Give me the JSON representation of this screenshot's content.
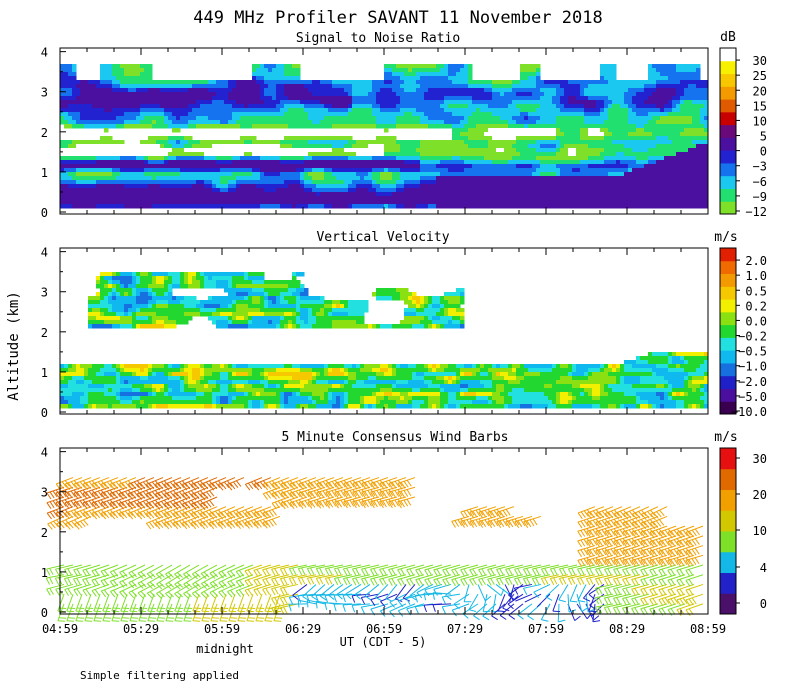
{
  "figure": {
    "title": "449 MHz Profiler SAVANT 11 November 2018",
    "ylabel": "Altitude (km)",
    "xlabel": "UT  (CDT - 5)",
    "midnight_label": "midnight",
    "footer_note": "Simple filtering applied"
  },
  "colors": {
    "snr": [
      "#7fe02a",
      "#22e070",
      "#1ac8f0",
      "#1673f0",
      "#2222d0",
      "#4b10a0",
      "#6a0a7a",
      "#c80000",
      "#e05a00",
      "#f29a00",
      "#f7c800",
      "#f7f000",
      "#ffffff"
    ],
    "vv": [
      "#3a0050",
      "#4b0fa0",
      "#2020c8",
      "#1770e0",
      "#10b8f0",
      "#22e0e0",
      "#22d830",
      "#8ae010",
      "#f2f000",
      "#f5c800",
      "#f29a00",
      "#ef6a00",
      "#e02000"
    ],
    "wind": [
      "#4a106a",
      "#2222c8",
      "#14b8e6",
      "#7fe02a",
      "#d2c800",
      "#f2a000",
      "#e06a00",
      "#e61010"
    ]
  },
  "chart_data": [
    {
      "type": "heatmap",
      "title": "Signal to Noise Ratio",
      "units": "dB",
      "x_ticks": [
        "04:59",
        "05:29",
        "05:59",
        "06:29",
        "06:59",
        "07:29",
        "07:59",
        "08:29",
        "08:59"
      ],
      "y_ticks": [
        "0",
        "1",
        "2",
        "3",
        "4"
      ],
      "ylim": [
        0,
        4
      ],
      "xlim": [
        "04:59",
        "08:59"
      ],
      "colorbar_labels": [
        "30",
        "25",
        "20",
        "15",
        "10",
        "5",
        "0",
        "−3",
        "−6",
        "−9",
        "−12"
      ]
    },
    {
      "type": "heatmap",
      "title": "Vertical Velocity",
      "units": "m/s",
      "x_ticks": [
        "04:59",
        "05:29",
        "05:59",
        "06:29",
        "06:59",
        "07:29",
        "07:59",
        "08:29",
        "08:59"
      ],
      "y_ticks": [
        "0",
        "1",
        "2",
        "3",
        "4"
      ],
      "ylim": [
        0,
        4
      ],
      "colorbar_labels": [
        "2.0",
        "1.0",
        "0.5",
        "0.2",
        "0.0",
        "−0.2",
        "−0.5",
        "−1.0",
        "−2.0",
        "−5.0",
        "−10.0"
      ]
    },
    {
      "type": "scatter",
      "title": "5 Minute Consensus Wind Barbs",
      "units": "m/s",
      "x_ticks": [
        "04:59",
        "05:29",
        "05:59",
        "06:29",
        "06:59",
        "07:29",
        "07:59",
        "08:29",
        "08:59"
      ],
      "y_ticks": [
        "0",
        "1",
        "2",
        "3",
        "4"
      ],
      "ylim": [
        0,
        4
      ],
      "colorbar_labels": [
        "30",
        "20",
        "10",
        "4",
        "0"
      ]
    }
  ]
}
